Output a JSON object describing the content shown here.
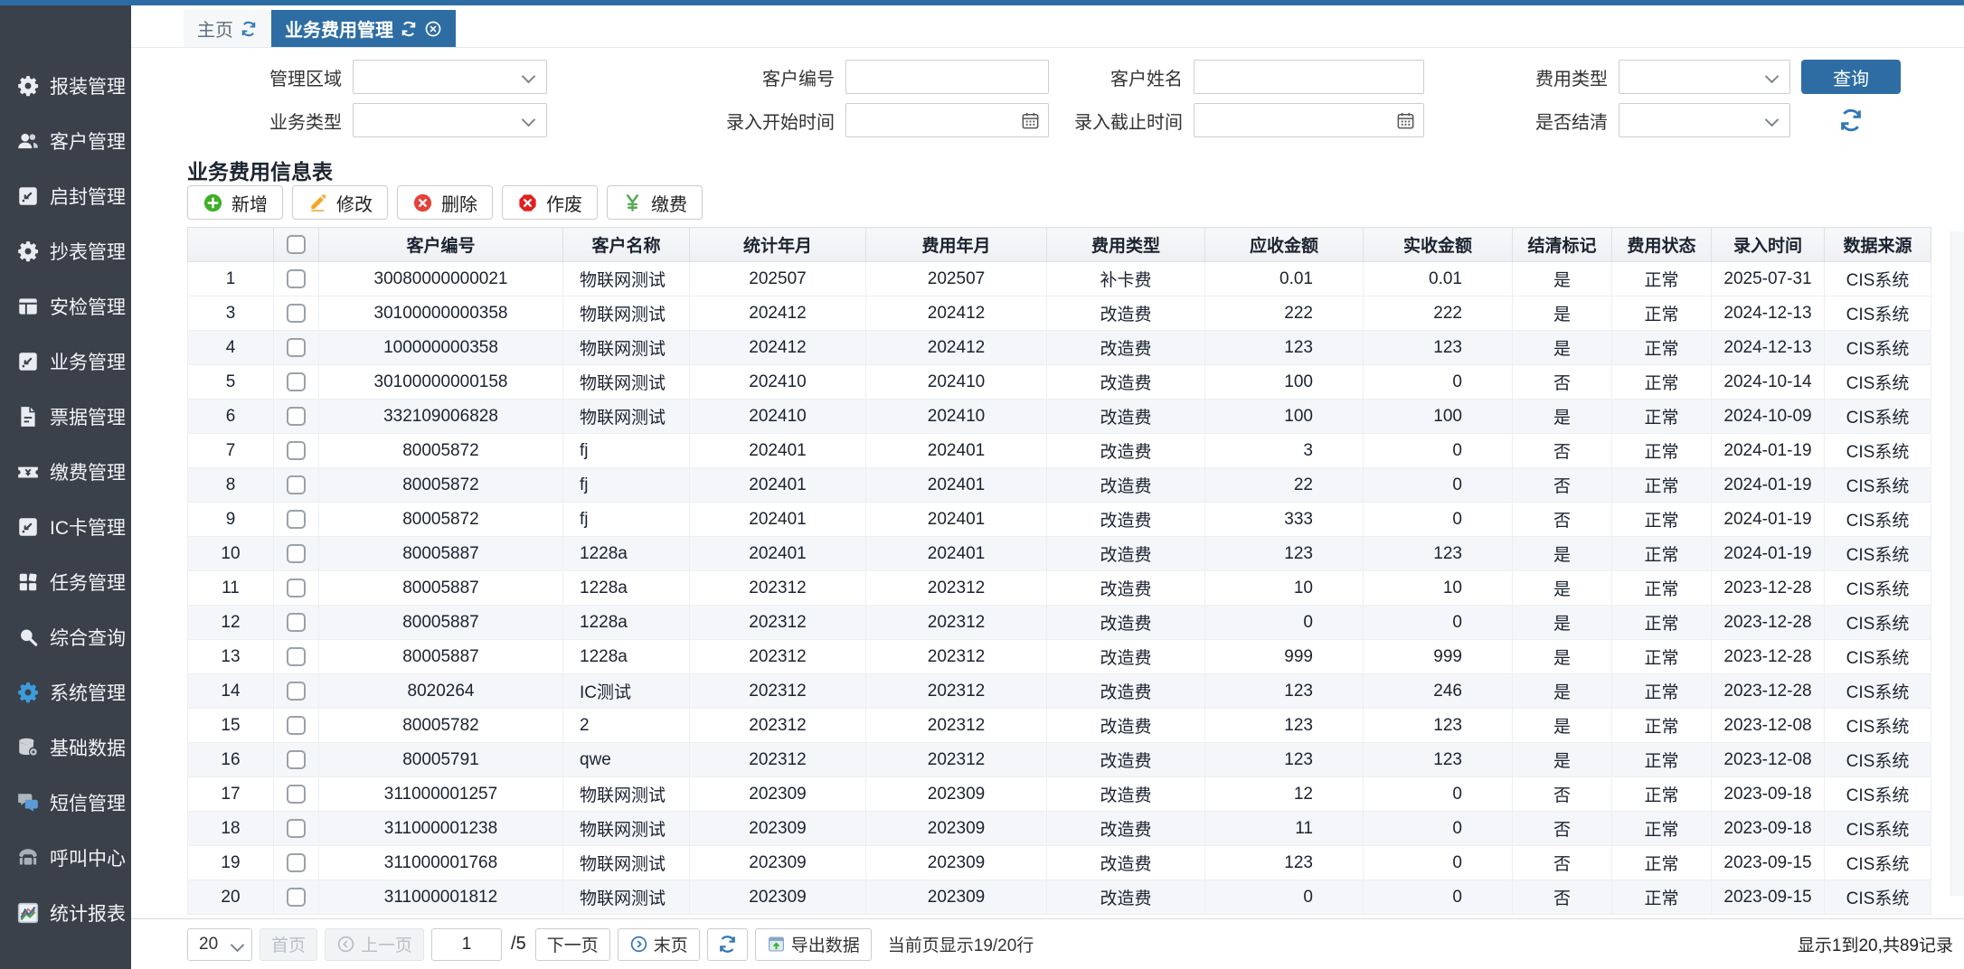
{
  "app": {
    "accent_color": "#2e6da4",
    "sidebar_color": "#3a414b"
  },
  "tabs": [
    {
      "id": "home",
      "label": "主页"
    },
    {
      "id": "business-fee",
      "label": "业务费用管理"
    }
  ],
  "sidebar": {
    "items": [
      {
        "id": "install",
        "icon": "gear",
        "label": "报装管理"
      },
      {
        "id": "customer",
        "icon": "users",
        "label": "客户管理"
      },
      {
        "id": "unseal",
        "icon": "box-arrow",
        "label": "启封管理"
      },
      {
        "id": "meter-read",
        "icon": "gear",
        "label": "抄表管理"
      },
      {
        "id": "safety-check",
        "icon": "layout",
        "label": "安检管理"
      },
      {
        "id": "business",
        "icon": "box-arrow",
        "label": "业务管理"
      },
      {
        "id": "invoice",
        "icon": "doc",
        "label": "票据管理"
      },
      {
        "id": "payment",
        "icon": "ticket",
        "label": "缴费管理"
      },
      {
        "id": "ic-card",
        "icon": "box-arrow",
        "label": "IC卡管理"
      },
      {
        "id": "task",
        "icon": "grid",
        "label": "任务管理"
      },
      {
        "id": "query",
        "icon": "search",
        "label": "综合查询"
      },
      {
        "id": "system",
        "icon": "gear",
        "label": "系统管理",
        "color": "#3d9bd9",
        "active": true
      },
      {
        "id": "base-data",
        "icon": "db",
        "label": "基础数据",
        "color": "#ccd2d8"
      },
      {
        "id": "sms",
        "icon": "chat",
        "label": "短信管理"
      },
      {
        "id": "call-center",
        "icon": "phone",
        "label": "呼叫中心",
        "color": "#a7afb8"
      },
      {
        "id": "report",
        "icon": "chart",
        "label": "统计报表"
      }
    ]
  },
  "filters": {
    "rows": [
      [
        {
          "id": "region",
          "label": "管理区域",
          "type": "select",
          "value": ""
        },
        {
          "id": "customer-no",
          "label": "客户编号",
          "type": "text",
          "value": ""
        },
        {
          "id": "customer-name",
          "label": "客户姓名",
          "type": "text",
          "value": ""
        },
        {
          "id": "fee-type",
          "label": "费用类型",
          "type": "select",
          "value": ""
        }
      ],
      [
        {
          "id": "business-type",
          "label": "业务类型",
          "type": "select",
          "value": ""
        },
        {
          "id": "entry-start",
          "label": "录入开始时间",
          "type": "date",
          "value": ""
        },
        {
          "id": "entry-end",
          "label": "录入截止时间",
          "type": "date",
          "value": ""
        },
        {
          "id": "is-settled",
          "label": "是否结清",
          "type": "select",
          "value": ""
        }
      ]
    ],
    "search_label": "查询"
  },
  "section": {
    "title": "业务费用信息表"
  },
  "toolbar": {
    "buttons": [
      {
        "id": "add",
        "label": "新增",
        "icon": "plus-circle"
      },
      {
        "id": "edit",
        "label": "修改",
        "icon": "pencil"
      },
      {
        "id": "delete",
        "label": "删除",
        "icon": "x-circle"
      },
      {
        "id": "void",
        "label": "作废",
        "icon": "x-octagon"
      },
      {
        "id": "pay",
        "label": "缴费",
        "icon": "yen"
      }
    ]
  },
  "table": {
    "columns": [
      "客户编号",
      "客户名称",
      "统计年月",
      "费用年月",
      "费用类型",
      "应收金额",
      "实收金额",
      "结清标记",
      "费用状态",
      "录入时间",
      "数据来源"
    ],
    "rows": [
      {
        "num": "1",
        "customer_no": "30080000000021",
        "customer_name": "物联网测试",
        "stat_month": "202507",
        "fee_month": "202507",
        "fee_type": "补卡费",
        "receivable": "0.01",
        "received": "0.01",
        "settled": "是",
        "status": "正常",
        "entry_time": "2025-07-31",
        "source": "CIS系统"
      },
      {
        "num": "3",
        "customer_no": "30100000000358",
        "customer_name": "物联网测试",
        "stat_month": "202412",
        "fee_month": "202412",
        "fee_type": "改造费",
        "receivable": "222",
        "received": "222",
        "settled": "是",
        "status": "正常",
        "entry_time": "2024-12-13",
        "source": "CIS系统"
      },
      {
        "num": "4",
        "customer_no": "100000000358",
        "customer_name": "物联网测试",
        "stat_month": "202412",
        "fee_month": "202412",
        "fee_type": "改造费",
        "receivable": "123",
        "received": "123",
        "settled": "是",
        "status": "正常",
        "entry_time": "2024-12-13",
        "source": "CIS系统"
      },
      {
        "num": "5",
        "customer_no": "30100000000158",
        "customer_name": "物联网测试",
        "stat_month": "202410",
        "fee_month": "202410",
        "fee_type": "改造费",
        "receivable": "100",
        "received": "0",
        "settled": "否",
        "status": "正常",
        "entry_time": "2024-10-14",
        "source": "CIS系统"
      },
      {
        "num": "6",
        "customer_no": "332109006828",
        "customer_name": "物联网测试",
        "stat_month": "202410",
        "fee_month": "202410",
        "fee_type": "改造费",
        "receivable": "100",
        "received": "100",
        "settled": "是",
        "status": "正常",
        "entry_time": "2024-10-09",
        "source": "CIS系统"
      },
      {
        "num": "7",
        "customer_no": "80005872",
        "customer_name": "fj",
        "stat_month": "202401",
        "fee_month": "202401",
        "fee_type": "改造费",
        "receivable": "3",
        "received": "0",
        "settled": "否",
        "status": "正常",
        "entry_time": "2024-01-19",
        "source": "CIS系统"
      },
      {
        "num": "8",
        "customer_no": "80005872",
        "customer_name": "fj",
        "stat_month": "202401",
        "fee_month": "202401",
        "fee_type": "改造费",
        "receivable": "22",
        "received": "0",
        "settled": "否",
        "status": "正常",
        "entry_time": "2024-01-19",
        "source": "CIS系统"
      },
      {
        "num": "9",
        "customer_no": "80005872",
        "customer_name": "fj",
        "stat_month": "202401",
        "fee_month": "202401",
        "fee_type": "改造费",
        "receivable": "333",
        "received": "0",
        "settled": "否",
        "status": "正常",
        "entry_time": "2024-01-19",
        "source": "CIS系统"
      },
      {
        "num": "10",
        "customer_no": "80005887",
        "customer_name": "1228a",
        "stat_month": "202401",
        "fee_month": "202401",
        "fee_type": "改造费",
        "receivable": "123",
        "received": "123",
        "settled": "是",
        "status": "正常",
        "entry_time": "2024-01-19",
        "source": "CIS系统"
      },
      {
        "num": "11",
        "customer_no": "80005887",
        "customer_name": "1228a",
        "stat_month": "202312",
        "fee_month": "202312",
        "fee_type": "改造费",
        "receivable": "10",
        "received": "10",
        "settled": "是",
        "status": "正常",
        "entry_time": "2023-12-28",
        "source": "CIS系统"
      },
      {
        "num": "12",
        "customer_no": "80005887",
        "customer_name": "1228a",
        "stat_month": "202312",
        "fee_month": "202312",
        "fee_type": "改造费",
        "receivable": "0",
        "received": "0",
        "settled": "是",
        "status": "正常",
        "entry_time": "2023-12-28",
        "source": "CIS系统"
      },
      {
        "num": "13",
        "customer_no": "80005887",
        "customer_name": "1228a",
        "stat_month": "202312",
        "fee_month": "202312",
        "fee_type": "改造费",
        "receivable": "999",
        "received": "999",
        "settled": "是",
        "status": "正常",
        "entry_time": "2023-12-28",
        "source": "CIS系统"
      },
      {
        "num": "14",
        "customer_no": "8020264",
        "customer_name": "IC测试",
        "stat_month": "202312",
        "fee_month": "202312",
        "fee_type": "改造费",
        "receivable": "123",
        "received": "246",
        "settled": "是",
        "status": "正常",
        "entry_time": "2023-12-28",
        "source": "CIS系统"
      },
      {
        "num": "15",
        "customer_no": "80005782",
        "customer_name": "2",
        "stat_month": "202312",
        "fee_month": "202312",
        "fee_type": "改造费",
        "receivable": "123",
        "received": "123",
        "settled": "是",
        "status": "正常",
        "entry_time": "2023-12-08",
        "source": "CIS系统"
      },
      {
        "num": "16",
        "customer_no": "80005791",
        "customer_name": "qwe",
        "stat_month": "202312",
        "fee_month": "202312",
        "fee_type": "改造费",
        "receivable": "123",
        "received": "123",
        "settled": "是",
        "status": "正常",
        "entry_time": "2023-12-08",
        "source": "CIS系统"
      },
      {
        "num": "17",
        "customer_no": "311000001257",
        "customer_name": "物联网测试",
        "stat_month": "202309",
        "fee_month": "202309",
        "fee_type": "改造费",
        "receivable": "12",
        "received": "0",
        "settled": "否",
        "status": "正常",
        "entry_time": "2023-09-18",
        "source": "CIS系统"
      },
      {
        "num": "18",
        "customer_no": "311000001238",
        "customer_name": "物联网测试",
        "stat_month": "202309",
        "fee_month": "202309",
        "fee_type": "改造费",
        "receivable": "11",
        "received": "0",
        "settled": "否",
        "status": "正常",
        "entry_time": "2023-09-18",
        "source": "CIS系统"
      },
      {
        "num": "19",
        "customer_no": "311000001768",
        "customer_name": "物联网测试",
        "stat_month": "202309",
        "fee_month": "202309",
        "fee_type": "改造费",
        "receivable": "123",
        "received": "0",
        "settled": "否",
        "status": "正常",
        "entry_time": "2023-09-15",
        "source": "CIS系统"
      },
      {
        "num": "20",
        "customer_no": "311000001812",
        "customer_name": "物联网测试",
        "stat_month": "202309",
        "fee_month": "202309",
        "fee_type": "改造费",
        "receivable": "0",
        "received": "0",
        "settled": "否",
        "status": "正常",
        "entry_time": "2023-09-15",
        "source": "CIS系统"
      }
    ]
  },
  "pagination": {
    "page_size": "20",
    "first": "首页",
    "prev": "上一页",
    "page": "1",
    "total_pages": "/5",
    "next": "下一页",
    "last": "末页",
    "export_label": "导出数据",
    "page_info": "当前页显示19/20行",
    "record_info": "显示1到20,共89记录"
  }
}
